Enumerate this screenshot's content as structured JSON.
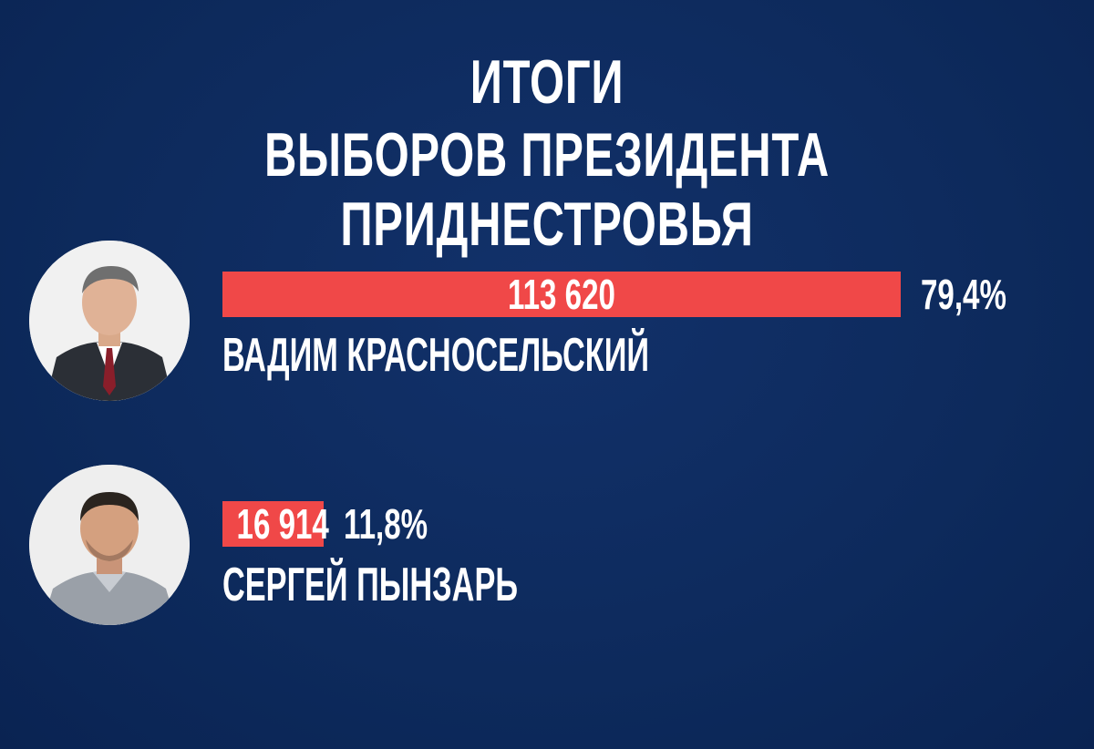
{
  "title": {
    "line1": "ИТОГИ",
    "line2": "ВЫБОРОВ ПРЕЗИДЕНТА ПРИДНЕСТРОВЬЯ"
  },
  "colors": {
    "background": "#0d2a5c",
    "bar": "#f04848",
    "text": "#ffffff"
  },
  "chart_data": {
    "type": "bar",
    "orientation": "horizontal",
    "title": "ИТОГИ ВЫБОРОВ ПРЕЗИДЕНТА ПРИДНЕСТРОВЬЯ",
    "categories": [
      "ВАДИМ КРАСНОСЕЛЬСКИЙ",
      "СЕРГЕЙ ПЫНЗАРЬ"
    ],
    "values": [
      113620,
      16914
    ],
    "value_labels": [
      "113 620",
      "16 914"
    ],
    "percent_labels": [
      "79,4%",
      "11,8%"
    ],
    "percents": [
      79.4,
      11.8
    ],
    "grid": false,
    "legend": "none"
  },
  "candidates": [
    {
      "name": "ВАДИМ КРАСНОСЕЛЬСКИЙ",
      "votes_label": "113 620",
      "percent_label": "79,4%",
      "photo_icon": "candidate-portrait-icon"
    },
    {
      "name": "СЕРГЕЙ ПЫНЗАРЬ",
      "votes_label": "16 914",
      "percent_label": "11,8%",
      "photo_icon": "candidate-portrait-icon"
    }
  ]
}
